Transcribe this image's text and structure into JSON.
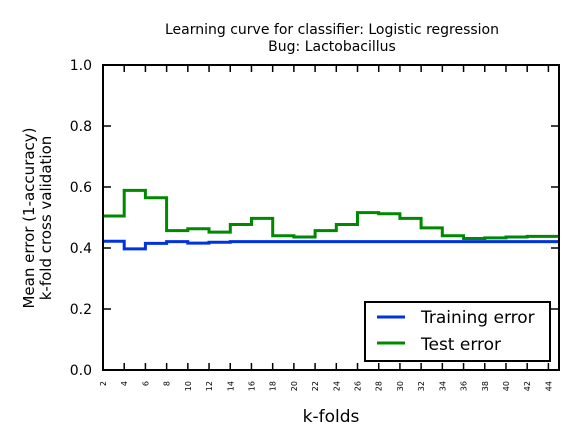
{
  "chart_data": {
    "type": "line",
    "step": "post",
    "title": "Learning curve for classifier: Logistic regression",
    "subtitle": "Bug: Lactobacillus",
    "xlabel": "k-folds",
    "ylabel": [
      "Mean error (1-accuracy)",
      "k-fold cross validation"
    ],
    "xlim": [
      2,
      45
    ],
    "ylim": [
      0.0,
      1.0
    ],
    "x_ticks": [
      2,
      4,
      6,
      8,
      10,
      12,
      14,
      16,
      18,
      20,
      22,
      24,
      26,
      28,
      30,
      32,
      34,
      36,
      38,
      40,
      42,
      44
    ],
    "y_ticks": [
      0.0,
      0.2,
      0.4,
      0.6,
      0.8,
      1.0
    ],
    "y_tick_labels": [
      "0.0",
      "0.2",
      "0.4",
      "0.6",
      "0.8",
      "1.0"
    ],
    "grid": false,
    "legend_position": "lower-right",
    "x": [
      2,
      4,
      6,
      8,
      10,
      12,
      14,
      16,
      18,
      20,
      22,
      24,
      26,
      28,
      30,
      32,
      34,
      36,
      38,
      40,
      42,
      44
    ],
    "series": [
      {
        "name": "Training error",
        "color": "#0033dd",
        "values": [
          0.422,
          0.397,
          0.415,
          0.421,
          0.416,
          0.419,
          0.421,
          0.421,
          0.421,
          0.421,
          0.421,
          0.421,
          0.421,
          0.421,
          0.421,
          0.421,
          0.421,
          0.421,
          0.421,
          0.421,
          0.421,
          0.421
        ]
      },
      {
        "name": "Test error",
        "color": "#008800",
        "values": [
          0.505,
          0.589,
          0.565,
          0.457,
          0.463,
          0.452,
          0.477,
          0.497,
          0.44,
          0.436,
          0.457,
          0.477,
          0.516,
          0.512,
          0.497,
          0.466,
          0.44,
          0.431,
          0.433,
          0.436,
          0.438,
          0.438
        ]
      }
    ]
  }
}
